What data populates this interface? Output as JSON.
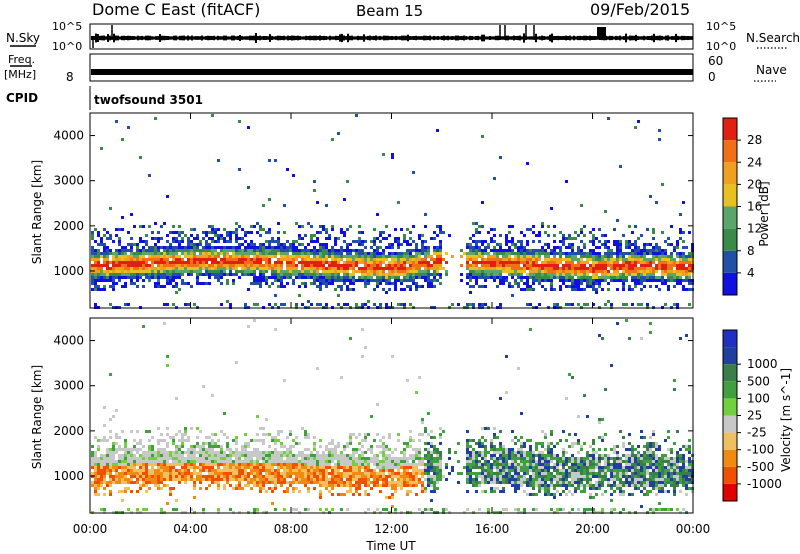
{
  "header": {
    "station": "Dome C East (fitACF)",
    "beam": "Beam 15",
    "date": "09/Feb/2015"
  },
  "top_panels": {
    "nsky_label": "N.Sky",
    "nsky_ticks_left": [
      "10^5",
      "10^0"
    ],
    "nsearch_label": "N.Search",
    "nsearch_ticks_right": [
      "10^5",
      "10^0"
    ],
    "freq_label_line1": "Freq.",
    "freq_label_line2": "[MHz]",
    "freq_ticks": [
      "8"
    ],
    "nave_label": "Nave",
    "nave_ticks": [
      "60",
      "0"
    ],
    "cpid_label": "CPID",
    "cpid_value": "twofsound 3501"
  },
  "colors": {
    "power": [
      "#1010e0",
      "#2050a8",
      "#3a8a4a",
      "#5aa66a",
      "#e8c020",
      "#f0a020",
      "#f07018",
      "#e02010"
    ],
    "velocity": [
      "#e00000",
      "#f05000",
      "#f08a10",
      "#f0c060",
      "#c8c8c8",
      "#70d040",
      "#40a040",
      "#3a7e4a",
      "#2040a0",
      "#2030c0"
    ]
  },
  "chart_data": [
    {
      "type": "heatmap",
      "name": "power-panel",
      "ylabel": "Slant Range [km]",
      "yticks": [
        "1000",
        "2000",
        "3000",
        "4000"
      ],
      "ylim": [
        180,
        4500
      ],
      "xlim": [
        "00:00",
        "00:00"
      ],
      "colorbar_label": "Power [dB]",
      "colorbar_ticks": [
        "4",
        "8",
        "12",
        "16",
        "20",
        "24",
        "28"
      ],
      "colorbar_range": [
        0,
        32
      ],
      "echo_band_center_km": [
        1150,
        1200,
        1250,
        1250,
        1200,
        1150,
        1100,
        1250,
        1200,
        1150,
        1100,
        1150,
        1100
      ],
      "echo_band_times": [
        "00:00",
        "02:00",
        "04:00",
        "06:00",
        "08:00",
        "10:00",
        "12:00",
        "14:00",
        "16:00",
        "18:00",
        "20:00",
        "22:00",
        "24:00"
      ],
      "peak_power_db": 28
    },
    {
      "type": "heatmap",
      "name": "velocity-panel",
      "ylabel": "Slant Range [km]",
      "yticks": [
        "1000",
        "2000",
        "3000",
        "4000"
      ],
      "ylim": [
        180,
        4500
      ],
      "xlim": [
        "00:00",
        "00:00"
      ],
      "colorbar_label": "Velocity [m s^-1]",
      "colorbar_ticks": [
        "-1000",
        "-500",
        "-100",
        "-25",
        "25",
        "100",
        "500",
        "1000"
      ],
      "colorbar_range": [
        -1000,
        1000
      ]
    }
  ],
  "xaxis": {
    "ticks": [
      "00:00",
      "04:00",
      "08:00",
      "12:00",
      "16:00",
      "20:00",
      "00:00"
    ],
    "label": "Time UT"
  }
}
